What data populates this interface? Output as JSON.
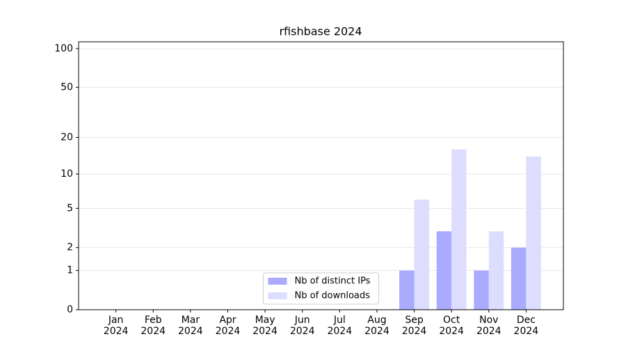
{
  "chart_data": {
    "type": "bar",
    "title": "rfishbase 2024",
    "categories": [
      "Jan\n2024",
      "Feb\n2024",
      "Mar\n2024",
      "Apr\n2024",
      "May\n2024",
      "Jun\n2024",
      "Jul\n2024",
      "Aug\n2024",
      "Sep\n2024",
      "Oct\n2024",
      "Nov\n2024",
      "Dec\n2024"
    ],
    "series": [
      {
        "name": "Nb of distinct IPs",
        "color": "#aaaaff",
        "values": [
          0,
          0,
          0,
          0,
          0,
          0,
          0,
          0,
          1,
          3,
          1,
          2
        ]
      },
      {
        "name": "Nb of downloads",
        "color": "#ddddff",
        "values": [
          0,
          0,
          0,
          0,
          0,
          0,
          0,
          0,
          6,
          16,
          3,
          14
        ]
      }
    ],
    "yscale": "log1p",
    "ylim": [
      0,
      113
    ],
    "yticks": [
      0,
      1,
      2,
      5,
      10,
      20,
      50,
      100
    ],
    "grid": true,
    "legend": "lower center"
  }
}
